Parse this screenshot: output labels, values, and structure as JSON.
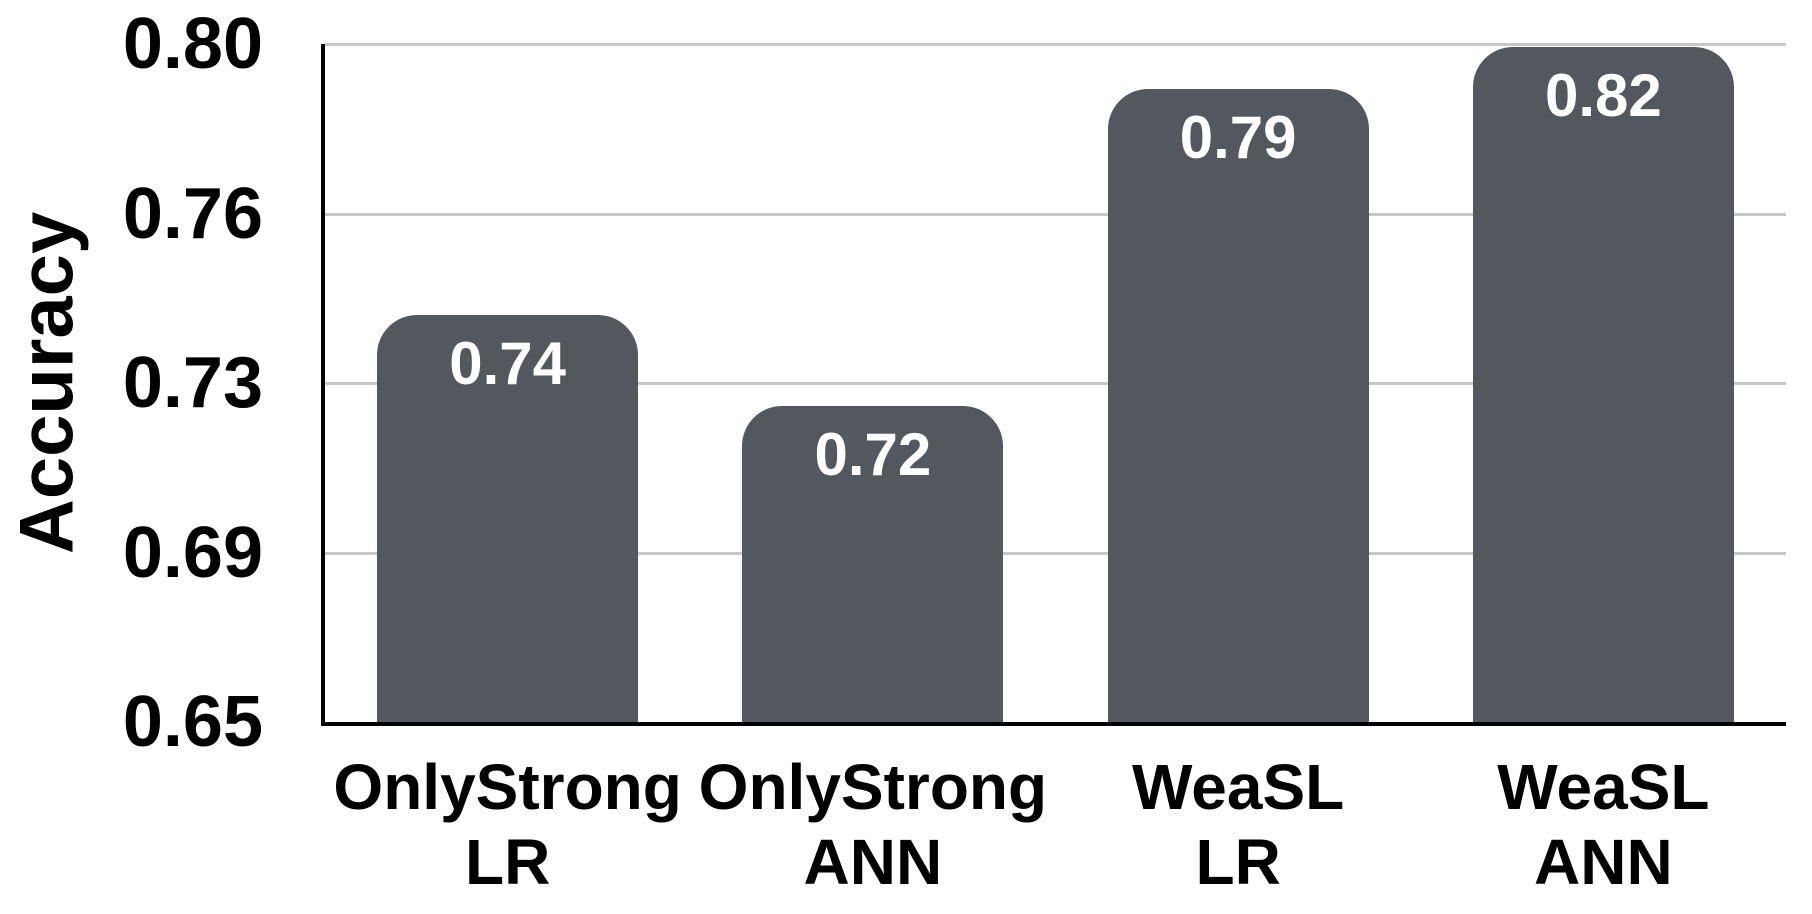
{
  "chart_data": {
    "type": "bar",
    "title": "",
    "ylabel": "Accuracy",
    "xlabel": "",
    "categories": [
      "OnlyStrong LR",
      "OnlyStrong ANN",
      "WeaSL LR",
      "WeaSL ANN"
    ],
    "category_lines": [
      [
        "OnlyStrong",
        "LR"
      ],
      [
        "OnlyStrong",
        "ANN"
      ],
      [
        "WeaSL",
        "LR"
      ],
      [
        "WeaSL",
        "ANN"
      ]
    ],
    "values": [
      0.74,
      0.72,
      0.79,
      0.82
    ],
    "bar_labels": [
      "0.74",
      "0.72",
      "0.79",
      "0.82"
    ],
    "ylim": [
      0.65,
      0.8
    ],
    "ytick_labels": [
      "0.80",
      "0.76",
      "0.73",
      "0.69",
      "0.65"
    ],
    "grid": "horizontal",
    "legend_position": "none",
    "colors": {
      "bar": "#53575E",
      "bar_label": "#FFFFFF",
      "gridline": "#C8C8C8",
      "axis": "#000000",
      "text": "#000000",
      "background": "#FFFFFF"
    }
  }
}
